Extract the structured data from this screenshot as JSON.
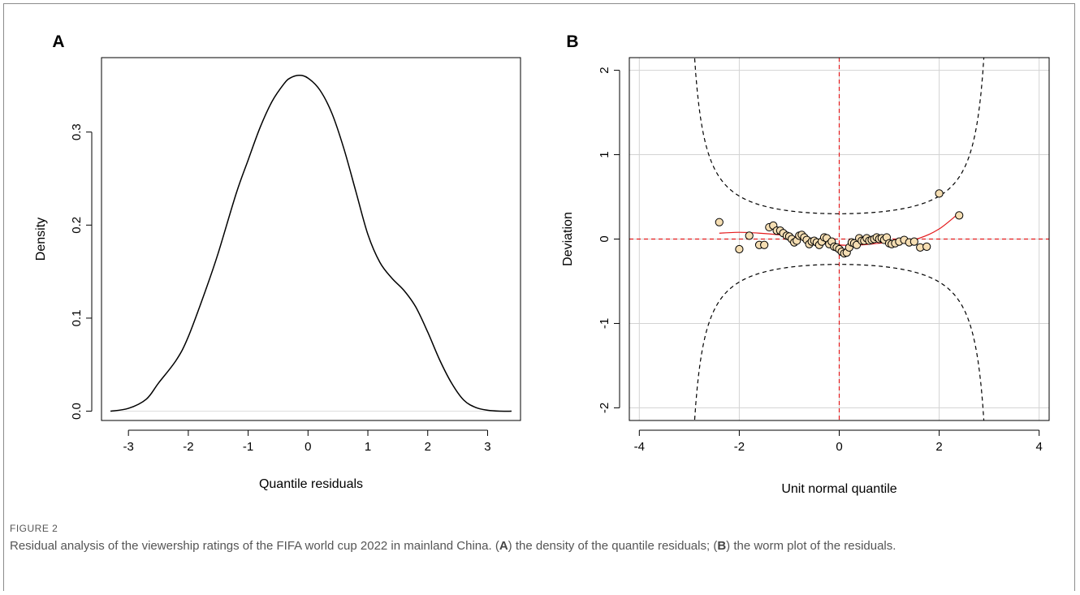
{
  "figure": {
    "label": "FIGURE 2",
    "caption_parts": [
      {
        "text": "Residual analysis of the viewership ratings of the FIFA world cup 2022 in mainland China. (",
        "bold": false
      },
      {
        "text": "A",
        "bold": true
      },
      {
        "text": ") the density of the quantile residuals; (",
        "bold": false
      },
      {
        "text": "B",
        "bold": true
      },
      {
        "text": ") the worm plot of the residuals.",
        "bold": false
      }
    ]
  },
  "chart_data": [
    {
      "panel": "A",
      "type": "line",
      "title": "",
      "xlabel": "Quantile residuals",
      "ylabel": "Density",
      "xlim": [
        -3.45,
        3.55
      ],
      "ylim": [
        -0.01,
        0.38
      ],
      "xticks": [
        -3,
        -2,
        -1,
        0,
        1,
        2,
        3
      ],
      "xtick_labels": [
        "-3",
        "-2",
        "-1",
        "0",
        "1",
        "2",
        "3"
      ],
      "yticks": [
        0.0,
        0.1,
        0.2,
        0.3
      ],
      "ytick_labels": [
        "0.0",
        "0.1",
        "0.2",
        "0.3"
      ],
      "grid": false,
      "series": [
        {
          "x": [
            -3.3,
            -3.0,
            -2.7,
            -2.5,
            -2.2,
            -2.0,
            -1.7,
            -1.5,
            -1.2,
            -1.0,
            -0.8,
            -0.6,
            -0.4,
            -0.3,
            -0.15,
            0.0,
            0.2,
            0.4,
            0.6,
            0.8,
            1.0,
            1.2,
            1.4,
            1.6,
            1.8,
            2.0,
            2.2,
            2.4,
            2.6,
            2.8,
            3.0,
            3.2,
            3.4
          ],
          "y": [
            0.0,
            0.003,
            0.013,
            0.03,
            0.055,
            0.08,
            0.132,
            0.17,
            0.234,
            0.27,
            0.305,
            0.333,
            0.352,
            0.358,
            0.361,
            0.358,
            0.345,
            0.32,
            0.282,
            0.236,
            0.19,
            0.16,
            0.143,
            0.13,
            0.112,
            0.085,
            0.055,
            0.03,
            0.012,
            0.004,
            0.001,
            0.0,
            0.0
          ]
        }
      ]
    },
    {
      "panel": "B",
      "type": "scatter",
      "title": "",
      "xlabel": "Unit normal quantile",
      "ylabel": "Deviation",
      "xlim": [
        -4.2,
        4.2
      ],
      "ylim": [
        -2.15,
        2.15
      ],
      "xticks": [
        -4,
        -2,
        0,
        2,
        4
      ],
      "xtick_labels": [
        "-4",
        "-2",
        "0",
        "2",
        "4"
      ],
      "yticks": [
        -2,
        -1,
        0,
        1,
        2
      ],
      "ytick_labels": [
        "-2",
        "-1",
        "0",
        "1",
        "2"
      ],
      "grid": true,
      "reference_lines": {
        "x": 0,
        "y": 0,
        "color": "#e41a1c"
      },
      "confidence_band": {
        "halfwidth_at_zero": 0.3,
        "color": "#000000"
      },
      "points": {
        "color": "#f5deb3",
        "x": [
          -2.4,
          -2.0,
          -1.8,
          -1.6,
          -1.5,
          -1.4,
          -1.32,
          -1.25,
          -1.18,
          -1.12,
          -1.05,
          -1.0,
          -0.95,
          -0.9,
          -0.85,
          -0.8,
          -0.75,
          -0.7,
          -0.65,
          -0.6,
          -0.55,
          -0.5,
          -0.45,
          -0.4,
          -0.35,
          -0.3,
          -0.25,
          -0.2,
          -0.15,
          -0.1,
          -0.05,
          0.0,
          0.05,
          0.1,
          0.15,
          0.2,
          0.25,
          0.3,
          0.35,
          0.4,
          0.45,
          0.5,
          0.55,
          0.6,
          0.65,
          0.7,
          0.75,
          0.8,
          0.85,
          0.9,
          0.95,
          1.0,
          1.05,
          1.12,
          1.2,
          1.3,
          1.4,
          1.5,
          1.62,
          1.75,
          2.0,
          2.4
        ],
        "y": [
          0.2,
          -0.12,
          0.04,
          -0.07,
          -0.07,
          0.14,
          0.16,
          0.1,
          0.1,
          0.07,
          0.04,
          0.03,
          0.0,
          -0.04,
          -0.02,
          0.04,
          0.05,
          0.02,
          -0.01,
          -0.06,
          -0.03,
          -0.02,
          -0.04,
          -0.07,
          -0.03,
          0.02,
          0.01,
          -0.06,
          -0.03,
          -0.09,
          -0.1,
          -0.12,
          -0.15,
          -0.17,
          -0.16,
          -0.1,
          -0.04,
          -0.05,
          -0.07,
          0.01,
          -0.02,
          -0.02,
          0.01,
          -0.02,
          -0.01,
          0.0,
          0.02,
          0.0,
          0.01,
          -0.01,
          0.02,
          -0.05,
          -0.06,
          -0.05,
          -0.03,
          -0.01,
          -0.04,
          -0.03,
          -0.1,
          -0.09,
          0.54,
          0.28
        ]
      },
      "fitted_curve": {
        "color": "#e41a1c",
        "x": [
          -2.4,
          -2.0,
          -1.6,
          -1.2,
          -0.8,
          -0.4,
          0.0,
          0.4,
          0.8,
          1.2,
          1.6,
          2.0,
          2.4
        ],
        "y": [
          0.07,
          0.08,
          0.07,
          0.05,
          0.02,
          -0.02,
          -0.07,
          -0.07,
          -0.05,
          -0.03,
          0.01,
          0.12,
          0.31
        ]
      }
    }
  ]
}
